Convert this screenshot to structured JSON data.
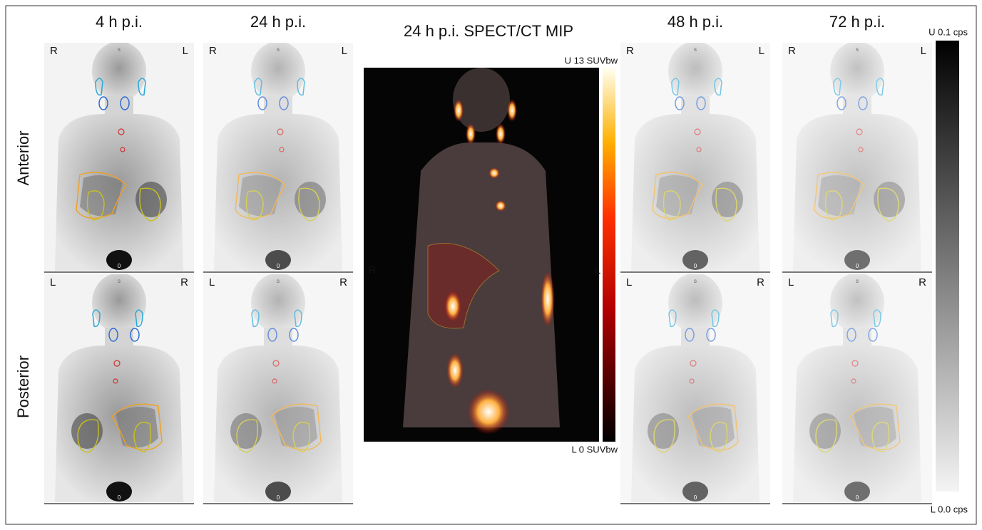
{
  "columns": [
    "4 h p.i.",
    "24 h p.i.",
    "48 h p.i.",
    "72 h p.i."
  ],
  "center_title": "24 h p.i. SPECT/CT MIP",
  "rows": [
    "Anterior",
    "Posterior"
  ],
  "anterior_sides": [
    "R",
    "L"
  ],
  "posterior_sides": [
    "L",
    "R"
  ],
  "center_sides": [
    "R",
    "L"
  ],
  "top_marker": "s",
  "bottom_marker": "0",
  "spect_scale": {
    "upper": "U 13 SUVbw",
    "lower": "L 0 SUVbw"
  },
  "planar_scale": {
    "upper": "U 0.1 cps",
    "lower": "L 0.0 cps"
  }
}
